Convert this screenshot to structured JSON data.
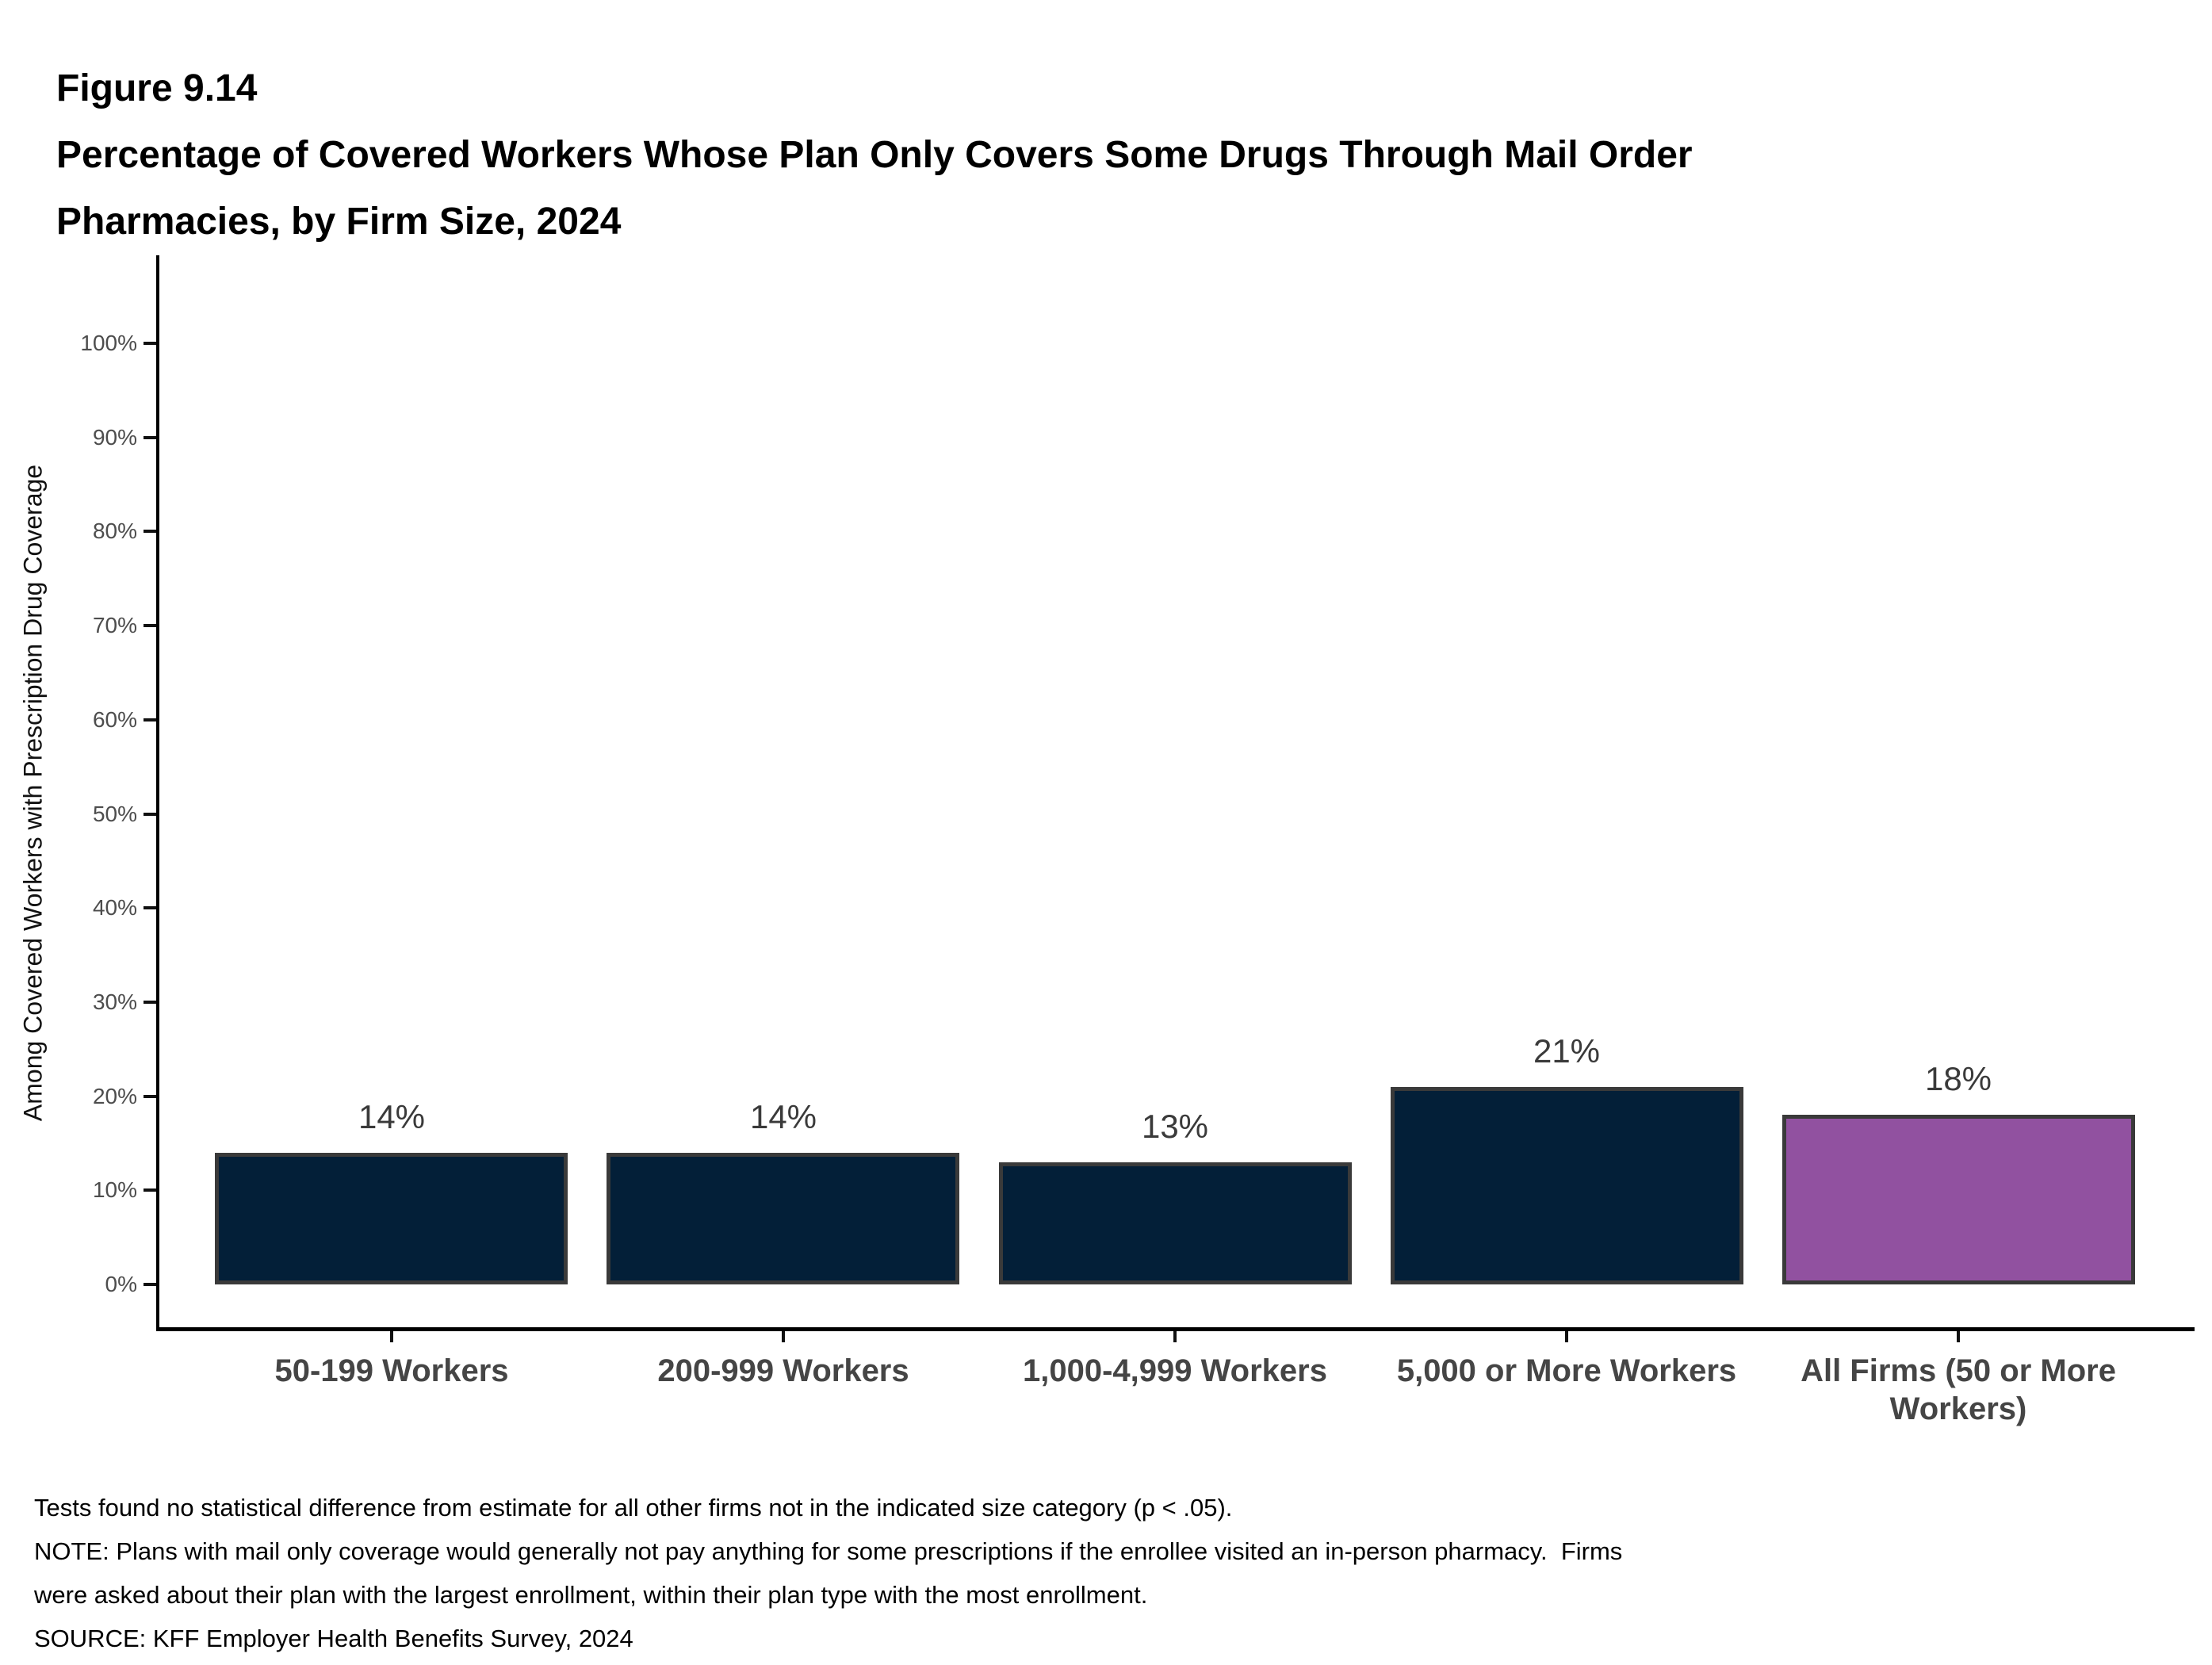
{
  "figure_label": "Figure 9.14",
  "title_lines": [
    "Percentage of Covered Workers Whose Plan Only Covers Some Drugs Through Mail Order",
    "Pharmacies, by Firm Size, 2024"
  ],
  "notes": [
    "Tests found no statistical difference from estimate for all other firms not in the indicated size category (p < .05).",
    "NOTE: Plans with mail only coverage would generally not pay anything for some prescriptions if the enrollee visited an in-person pharmacy.  Firms",
    "were asked about their plan with the largest enrollment, within their plan type with the most enrollment.",
    "SOURCE: KFF Employer Health Benefits Survey, 2024"
  ],
  "chart_data": {
    "type": "bar",
    "title": "Percentage of Covered Workers Whose Plan Only Covers Some Drugs Through Mail Order Pharmacies, by Firm Size, 2024",
    "categories": [
      "50-199 Workers",
      "200-999 Workers",
      "1,000-4,999 Workers",
      "5,000 or More Workers",
      "All Firms (50 or More Workers)"
    ],
    "values": [
      14,
      14,
      13,
      21,
      18
    ],
    "value_labels": [
      "14%",
      "14%",
      "13%",
      "21%",
      "18%"
    ],
    "xlabel": "",
    "ylabel": "Among Covered Workers with Prescription Drug Coverage",
    "ylim": [
      0,
      100
    ],
    "ytick_step": 10,
    "ytick_labels": [
      "0%",
      "10%",
      "20%",
      "30%",
      "40%",
      "50%",
      "60%",
      "70%",
      "80%",
      "90%",
      "100%"
    ],
    "grid": false,
    "legend": null,
    "bar_colors": [
      "#031f38",
      "#031f38",
      "#031f38",
      "#031f38",
      "#9151a0"
    ],
    "bar_border_color": "#3a3a3a",
    "axis_color": "#000000",
    "ytick_label_color": "#4d4d4d",
    "category_label_color": "#454545",
    "value_label_color": "#3a3a3a"
  }
}
